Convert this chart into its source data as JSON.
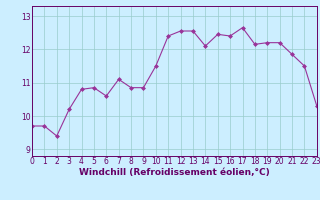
{
  "x": [
    0,
    1,
    2,
    3,
    4,
    5,
    6,
    7,
    8,
    9,
    10,
    11,
    12,
    13,
    14,
    15,
    16,
    17,
    18,
    19,
    20,
    21,
    22,
    23
  ],
  "y": [
    9.7,
    9.7,
    9.4,
    10.2,
    10.8,
    10.85,
    10.6,
    11.1,
    10.85,
    10.85,
    11.5,
    12.4,
    12.55,
    12.55,
    12.1,
    12.45,
    12.4,
    12.65,
    12.15,
    12.2,
    12.2,
    11.85,
    11.5,
    10.3
  ],
  "line_color": "#993399",
  "marker_color": "#993399",
  "bg_color": "#cceeff",
  "grid_color": "#99cccc",
  "axis_color": "#660066",
  "xlabel": "Windchill (Refroidissement éolien,°C)",
  "xlim": [
    0,
    23
  ],
  "ylim": [
    8.8,
    13.3
  ],
  "yticks": [
    9,
    10,
    11,
    12,
    13
  ],
  "xticks": [
    0,
    1,
    2,
    3,
    4,
    5,
    6,
    7,
    8,
    9,
    10,
    11,
    12,
    13,
    14,
    15,
    16,
    17,
    18,
    19,
    20,
    21,
    22,
    23
  ],
  "font_size": 5.5,
  "xlabel_font_size": 6.5,
  "line_width": 0.8,
  "marker_size": 2.0
}
